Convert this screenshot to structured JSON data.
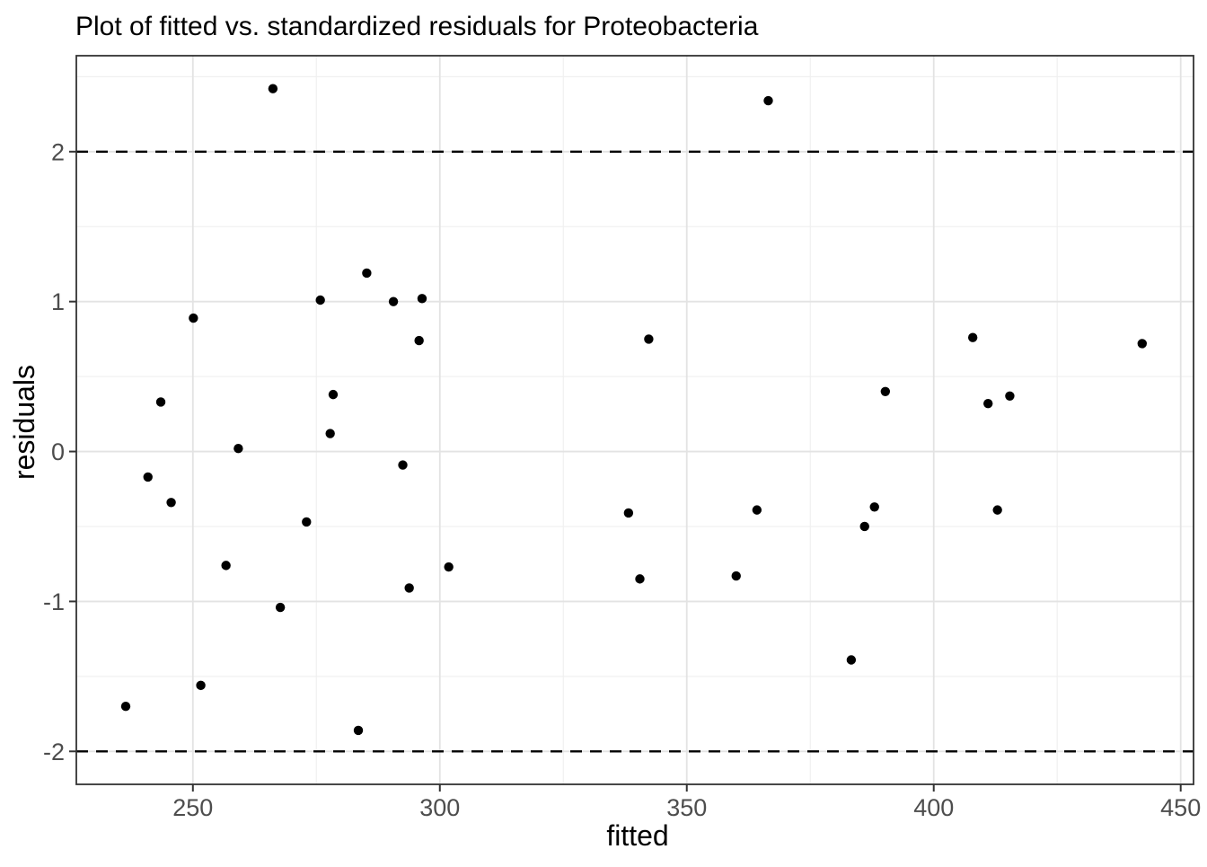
{
  "chart_data": {
    "type": "scatter",
    "title": "Plot of fitted vs. standardized residuals for Proteobacteria",
    "xlabel": "fitted",
    "ylabel": "residuals",
    "xlim": [
      226.4,
      452.6
    ],
    "ylim": [
      -2.22,
      2.64
    ],
    "x_ticks": [
      250,
      300,
      350,
      400,
      450
    ],
    "y_ticks": [
      -2,
      -1,
      0,
      1,
      2
    ],
    "x_minor_ticks": [
      275,
      325,
      375,
      425
    ],
    "y_minor_ticks": [
      -1.5,
      -0.5,
      0.5,
      1.5,
      2.5
    ],
    "grid": true,
    "legend": false,
    "reference_lines": [
      {
        "y": 2,
        "style": "dashed"
      },
      {
        "y": -2,
        "style": "dashed"
      }
    ],
    "points": [
      [
        266.2,
        2.42
      ],
      [
        366.5,
        2.34
      ],
      [
        285.2,
        1.19
      ],
      [
        296.4,
        1.02
      ],
      [
        275.8,
        1.01
      ],
      [
        290.6,
        1.0
      ],
      [
        250.1,
        0.89
      ],
      [
        407.9,
        0.76
      ],
      [
        342.3,
        0.75
      ],
      [
        295.8,
        0.74
      ],
      [
        442.2,
        0.72
      ],
      [
        390.2,
        0.4
      ],
      [
        278.4,
        0.38
      ],
      [
        415.4,
        0.37
      ],
      [
        243.5,
        0.33
      ],
      [
        411.0,
        0.32
      ],
      [
        277.8,
        0.12
      ],
      [
        259.2,
        0.02
      ],
      [
        292.5,
        -0.09
      ],
      [
        240.9,
        -0.17
      ],
      [
        245.6,
        -0.34
      ],
      [
        388.0,
        -0.37
      ],
      [
        364.2,
        -0.39
      ],
      [
        412.9,
        -0.39
      ],
      [
        338.2,
        -0.41
      ],
      [
        273.0,
        -0.47
      ],
      [
        386.0,
        -0.5
      ],
      [
        256.7,
        -0.76
      ],
      [
        301.8,
        -0.77
      ],
      [
        360.0,
        -0.83
      ],
      [
        340.5,
        -0.85
      ],
      [
        293.8,
        -0.91
      ],
      [
        267.7,
        -1.04
      ],
      [
        383.3,
        -1.39
      ],
      [
        251.6,
        -1.56
      ],
      [
        236.4,
        -1.7
      ],
      [
        283.5,
        -1.86
      ]
    ],
    "colors": {
      "background": "#ffffff",
      "panel_background": "#ffffff",
      "grid_major": "#e3e3e3",
      "grid_minor": "#f0f0f0",
      "panel_border": "#333333",
      "tick_mark": "#333333",
      "tick_label": "#4d4d4d",
      "point": "#000000",
      "reference_line": "#000000",
      "title": "#000000",
      "axis_title": "#000000"
    }
  }
}
